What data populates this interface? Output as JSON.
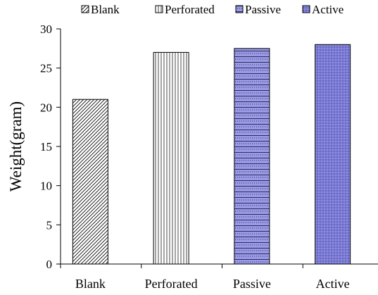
{
  "chart_data": {
    "type": "bar",
    "categories": [
      "Blank",
      "Perforated",
      "Passive",
      "Active"
    ],
    "series": [
      {
        "name": "Blank",
        "values": [
          21,
          null,
          null,
          null
        ]
      },
      {
        "name": "Perforated",
        "values": [
          null,
          27,
          null,
          null
        ]
      },
      {
        "name": "Passive",
        "values": [
          null,
          null,
          27.5,
          null
        ]
      },
      {
        "name": "Active",
        "values": [
          null,
          null,
          null,
          28
        ]
      }
    ],
    "values": [
      21,
      27,
      27.5,
      28
    ],
    "title": "",
    "xlabel": "",
    "ylabel": "Weight(gram)",
    "ylim": [
      0,
      30
    ],
    "yticks": [
      0,
      5,
      10,
      15,
      20,
      25,
      30
    ],
    "grid": false,
    "legend_placement": "top",
    "legend_entries": [
      "Blank",
      "Perforated",
      "Passive",
      "Active"
    ],
    "fill_patterns": [
      "diagonal-hatch",
      "vertical-lines",
      "horizontal-dotted",
      "dotted"
    ],
    "colors": {
      "blank": "#ffffff",
      "perforated": "#ffffff",
      "passive": "#9a9ae6",
      "active": "#7a7ad6",
      "axis": "#000000"
    }
  }
}
